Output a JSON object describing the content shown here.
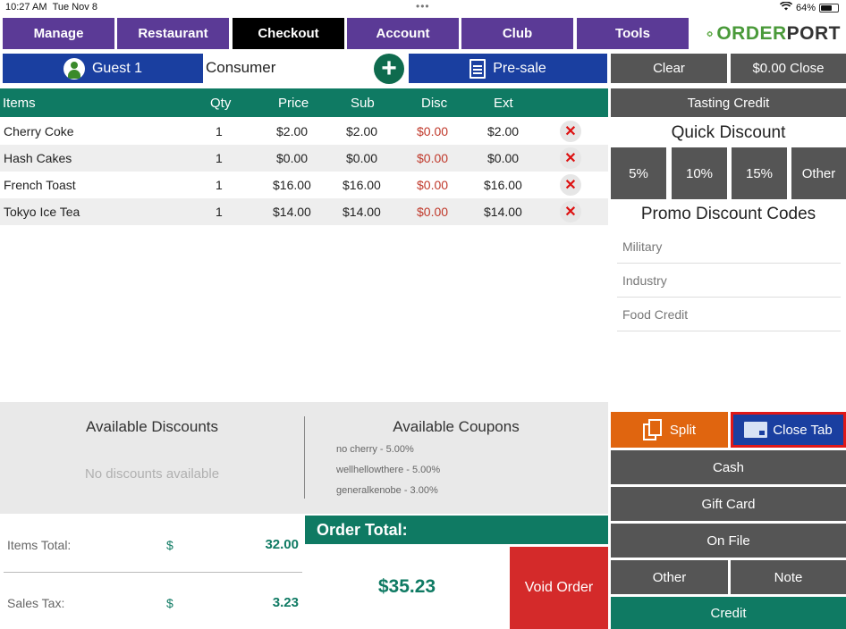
{
  "status": {
    "time": "10:27 AM",
    "date": "Tue Nov 8",
    "battery": "64%",
    "battery_level": 0.64
  },
  "nav": {
    "manage": "Manage",
    "restaurant": "Restaurant",
    "checkout": "Checkout",
    "account": "Account",
    "club": "Club",
    "tools": "Tools",
    "active": "Checkout"
  },
  "logo": {
    "part1": "ORDER",
    "part2": "PORT"
  },
  "guest": {
    "label": "Guest 1",
    "type": "Consumer",
    "presale": "Pre-sale"
  },
  "actions": {
    "clear": "Clear",
    "close": "$0.00 Close",
    "tasting": "Tasting Credit"
  },
  "quick_discount": {
    "title": "Quick Discount",
    "options": [
      "5%",
      "10%",
      "15%",
      "Other"
    ]
  },
  "promo": {
    "title": "Promo Discount Codes",
    "codes": [
      "Military",
      "Industry",
      "Food Credit"
    ]
  },
  "table": {
    "headers": {
      "items": "Items",
      "qty": "Qty",
      "price": "Price",
      "sub": "Sub",
      "disc": "Disc",
      "ext": "Ext"
    },
    "rows": [
      {
        "item": "Cherry Coke",
        "qty": "1",
        "price": "$2.00",
        "sub": "$2.00",
        "disc": "$0.00",
        "ext": "$2.00"
      },
      {
        "item": "Hash Cakes",
        "qty": "1",
        "price": "$0.00",
        "sub": "$0.00",
        "disc": "$0.00",
        "ext": "$0.00"
      },
      {
        "item": "French Toast",
        "qty": "1",
        "price": "$16.00",
        "sub": "$16.00",
        "disc": "$0.00",
        "ext": "$16.00"
      },
      {
        "item": "Tokyo Ice Tea",
        "qty": "1",
        "price": "$14.00",
        "sub": "$14.00",
        "disc": "$0.00",
        "ext": "$14.00"
      }
    ]
  },
  "discounts": {
    "title": "Available Discounts",
    "empty": "No discounts available"
  },
  "coupons": {
    "title": "Available Coupons",
    "items": [
      "no cherry - 5.00%",
      "wellhellowthere - 5.00%",
      "generalkenobe - 3.00%"
    ]
  },
  "totals": {
    "items_label": "Items Total:",
    "items_currency": "$",
    "items_value": "32.00",
    "tax_label": "Sales Tax:",
    "tax_currency": "$",
    "tax_value": "3.23"
  },
  "order_total": {
    "label": "Order Total:",
    "value": "$35.23"
  },
  "void": "Void Order",
  "payment": {
    "split": "Split",
    "close_tab": "Close Tab",
    "cash": "Cash",
    "gift_card": "Gift Card",
    "on_file": "On File",
    "other": "Other",
    "note": "Note",
    "credit": "Credit"
  },
  "colors": {
    "nav": "#5b3a96",
    "blue": "#1a3fa0",
    "green": "#0f7a63",
    "gray": "#555555",
    "orange": "#e0650f",
    "red": "#d42a2a"
  }
}
